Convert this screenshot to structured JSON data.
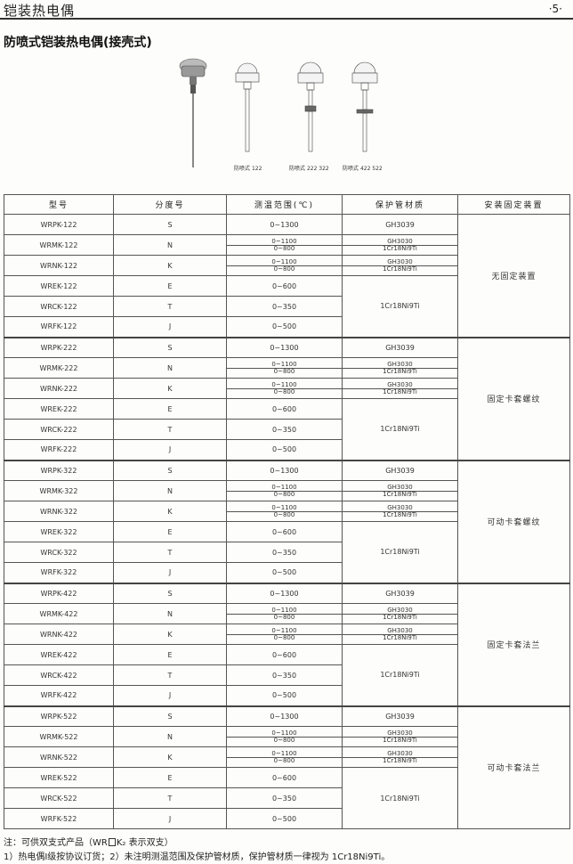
{
  "header": {
    "chapter": "铠装热电偶",
    "page_number": "·5·"
  },
  "section_title": "防喷式铠装热电偶(接壳式)",
  "figures": {
    "captions": [
      {
        "name": "防喷式",
        "code": "122"
      },
      {
        "name": "防喷式",
        "code": "222 322"
      },
      {
        "name": "防喷式",
        "code": "422 522"
      }
    ]
  },
  "table": {
    "headers": [
      "型号",
      "分度号",
      "测温范围(℃)",
      "保护管材质",
      "安装固定装置"
    ],
    "groups": [
      {
        "mount": "无固定装置",
        "rows": [
          {
            "model": "WRPK-122",
            "grad": "S",
            "range": [
              "0~1300"
            ],
            "material": [
              "GH3039"
            ]
          },
          {
            "model": "WRMK-122",
            "grad": "N",
            "range": [
              "0~1100",
              "0~800"
            ],
            "material": [
              "GH3030",
              "1Cr18Ni9Ti"
            ]
          },
          {
            "model": "WRNK-122",
            "grad": "K",
            "range": [
              "0~1100",
              "0~800"
            ],
            "material": [
              "GH3030",
              "1Cr18Ni9Ti"
            ]
          },
          {
            "model": "WREK-122",
            "grad": "E",
            "range": [
              "0~600"
            ]
          },
          {
            "model": "WRCK-122",
            "grad": "T",
            "range": [
              "0~350"
            ]
          },
          {
            "model": "WRFK-122",
            "grad": "J",
            "range": [
              "0~500"
            ]
          }
        ],
        "shared_material": "1Cr18Ni9Ti"
      },
      {
        "mount": "固定卡套螺纹",
        "rows": [
          {
            "model": "WRPK-222",
            "grad": "S",
            "range": [
              "0~1300"
            ],
            "material": [
              "GH3039"
            ]
          },
          {
            "model": "WRMK-222",
            "grad": "N",
            "range": [
              "0~1100",
              "0~800"
            ],
            "material": [
              "GH3030",
              "1Cr18Ni9Ti"
            ]
          },
          {
            "model": "WRNK-222",
            "grad": "K",
            "range": [
              "0~1100",
              "0~800"
            ],
            "material": [
              "GH3030",
              "1Cr18Ni9Ti"
            ]
          },
          {
            "model": "WREK-222",
            "grad": "E",
            "range": [
              "0~600"
            ]
          },
          {
            "model": "WRCK-222",
            "grad": "T",
            "range": [
              "0~350"
            ]
          },
          {
            "model": "WRFK-222",
            "grad": "J",
            "range": [
              "0~500"
            ]
          }
        ],
        "shared_material": "1Cr18Ni9Ti"
      },
      {
        "mount": "可动卡套螺纹",
        "rows": [
          {
            "model": "WRPK-322",
            "grad": "S",
            "range": [
              "0~1300"
            ],
            "material": [
              "GH3039"
            ]
          },
          {
            "model": "WRMK-322",
            "grad": "N",
            "range": [
              "0~1100",
              "0~800"
            ],
            "material": [
              "GH3030",
              "1Cr18Ni9Ti"
            ]
          },
          {
            "model": "WRNK-322",
            "grad": "K",
            "range": [
              "0~1100",
              "0~800"
            ],
            "material": [
              "GH3030",
              "1Cr18Ni9Ti"
            ]
          },
          {
            "model": "WREK-322",
            "grad": "E",
            "range": [
              "0~600"
            ]
          },
          {
            "model": "WRCK-322",
            "grad": "T",
            "range": [
              "0~350"
            ]
          },
          {
            "model": "WRFK-322",
            "grad": "J",
            "range": [
              "0~500"
            ]
          }
        ],
        "shared_material": "1Cr18Ni9Ti"
      },
      {
        "mount": "固定卡套法兰",
        "rows": [
          {
            "model": "WRPK-422",
            "grad": "S",
            "range": [
              "0~1300"
            ],
            "material": [
              "GH3039"
            ]
          },
          {
            "model": "WRMK-422",
            "grad": "N",
            "range": [
              "0~1100",
              "0~800"
            ],
            "material": [
              "GH3030",
              "1Cr18Ni9Ti"
            ]
          },
          {
            "model": "WRNK-422",
            "grad": "K",
            "range": [
              "0~1100",
              "0~800"
            ],
            "material": [
              "GH3030",
              "1Cr18Ni9Ti"
            ]
          },
          {
            "model": "WREK-422",
            "grad": "E",
            "range": [
              "0~600"
            ]
          },
          {
            "model": "WRCK-422",
            "grad": "T",
            "range": [
              "0~350"
            ]
          },
          {
            "model": "WRFK-422",
            "grad": "J",
            "range": [
              "0~500"
            ]
          }
        ],
        "shared_material": "1Cr18Ni9Ti"
      },
      {
        "mount": "可动卡套法兰",
        "rows": [
          {
            "model": "WRPK-522",
            "grad": "S",
            "range": [
              "0~1300"
            ],
            "material": [
              "GH3039"
            ]
          },
          {
            "model": "WRMK-522",
            "grad": "N",
            "range": [
              "0~1100",
              "0~800"
            ],
            "material": [
              "GH3030",
              "1Cr18Ni9Ti"
            ]
          },
          {
            "model": "WRNK-522",
            "grad": "K",
            "range": [
              "0~1100",
              "0~800"
            ],
            "material": [
              "GH3030",
              "1Cr18Ni9Ti"
            ]
          },
          {
            "model": "WREK-522",
            "grad": "E",
            "range": [
              "0~600"
            ]
          },
          {
            "model": "WRCK-522",
            "grad": "T",
            "range": [
              "0~350"
            ]
          },
          {
            "model": "WRFK-522",
            "grad": "J",
            "range": [
              "0~500"
            ]
          }
        ],
        "shared_material": "1Cr18Ni9Ti"
      }
    ]
  },
  "notes": {
    "line1_pre": "注：可供双支式产品（WR",
    "line1_post": "K₂ 表示双支）",
    "line2": "1）热电偶Ⅰ级按协议订货；2）未注明测温范围及保护管材质，保护管材质一律视为 1Cr18Ni9Ti。"
  }
}
